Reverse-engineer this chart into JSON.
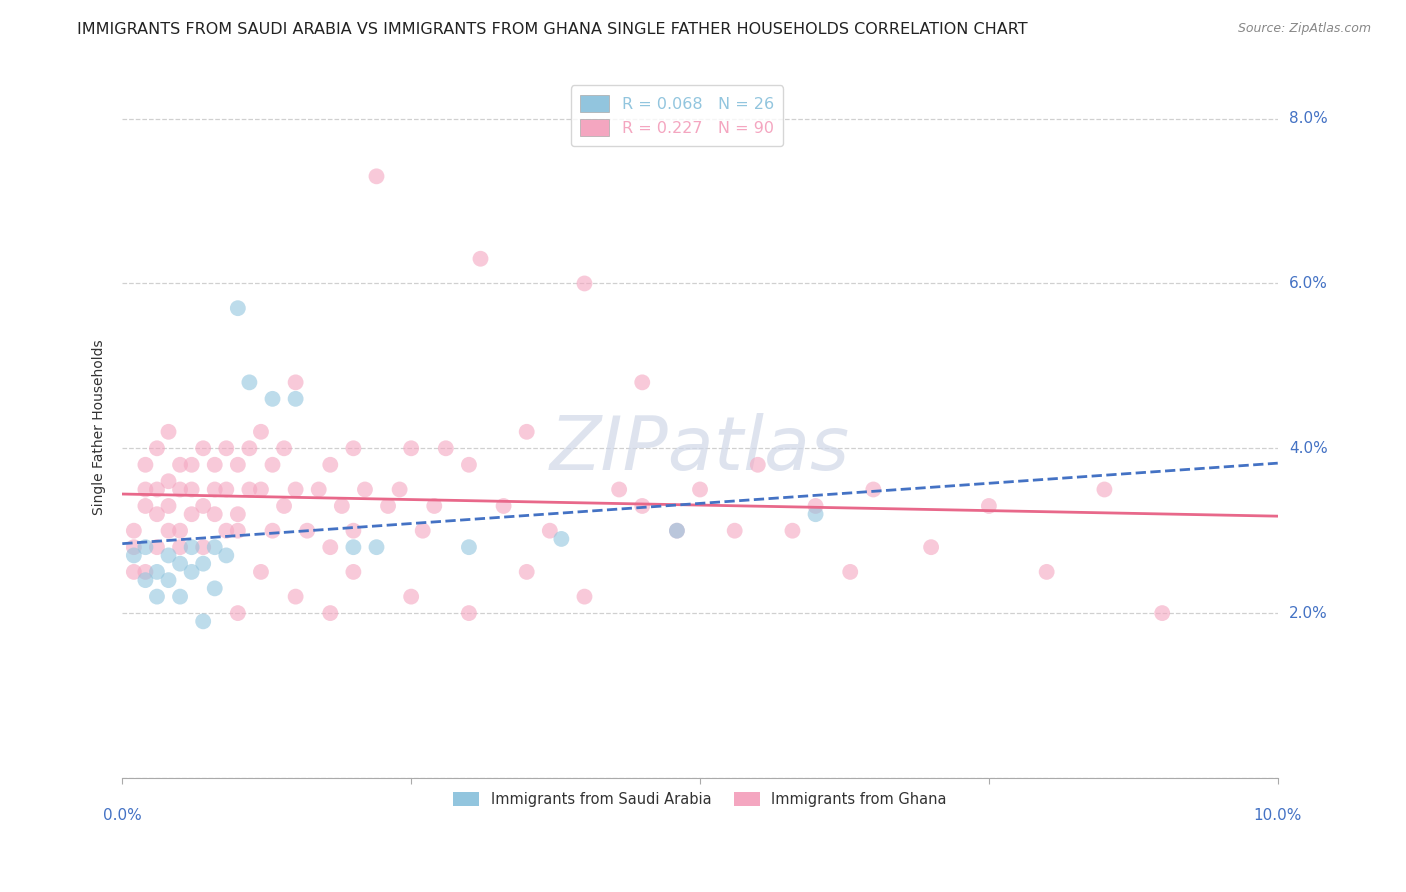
{
  "title": "IMMIGRANTS FROM SAUDI ARABIA VS IMMIGRANTS FROM GHANA SINGLE FATHER HOUSEHOLDS CORRELATION CHART",
  "source": "Source: ZipAtlas.com",
  "ylabel": "Single Father Households",
  "xlim": [
    0.0,
    0.1
  ],
  "ylim": [
    0.0,
    0.085
  ],
  "yticks": [
    0.0,
    0.02,
    0.04,
    0.06,
    0.08
  ],
  "ytick_labels": [
    "",
    "2.0%",
    "4.0%",
    "6.0%",
    "8.0%"
  ],
  "xticks": [
    0.0,
    0.025,
    0.05,
    0.075,
    0.1
  ],
  "legend_top": [
    {
      "label": "R = 0.068   N = 26",
      "color": "#92c5de"
    },
    {
      "label": "R = 0.227   N = 90",
      "color": "#f4a6c0"
    }
  ],
  "saudi_x": [
    0.001,
    0.002,
    0.002,
    0.003,
    0.003,
    0.004,
    0.004,
    0.005,
    0.005,
    0.006,
    0.006,
    0.007,
    0.007,
    0.008,
    0.008,
    0.009,
    0.01,
    0.011,
    0.013,
    0.015,
    0.02,
    0.022,
    0.03,
    0.038,
    0.048,
    0.06
  ],
  "saudi_y": [
    0.027,
    0.024,
    0.028,
    0.025,
    0.022,
    0.027,
    0.024,
    0.026,
    0.022,
    0.028,
    0.025,
    0.026,
    0.019,
    0.028,
    0.023,
    0.027,
    0.057,
    0.048,
    0.046,
    0.046,
    0.028,
    0.028,
    0.028,
    0.029,
    0.03,
    0.032
  ],
  "ghana_x": [
    0.001,
    0.001,
    0.001,
    0.002,
    0.002,
    0.002,
    0.002,
    0.003,
    0.003,
    0.003,
    0.003,
    0.004,
    0.004,
    0.004,
    0.004,
    0.005,
    0.005,
    0.005,
    0.005,
    0.006,
    0.006,
    0.006,
    0.007,
    0.007,
    0.007,
    0.008,
    0.008,
    0.008,
    0.009,
    0.009,
    0.009,
    0.01,
    0.01,
    0.01,
    0.011,
    0.011,
    0.012,
    0.012,
    0.013,
    0.013,
    0.014,
    0.014,
    0.015,
    0.015,
    0.016,
    0.017,
    0.018,
    0.018,
    0.019,
    0.02,
    0.02,
    0.021,
    0.022,
    0.023,
    0.024,
    0.025,
    0.026,
    0.027,
    0.028,
    0.03,
    0.031,
    0.033,
    0.035,
    0.037,
    0.04,
    0.043,
    0.045,
    0.048,
    0.05,
    0.053,
    0.055,
    0.058,
    0.06,
    0.063,
    0.065,
    0.07,
    0.075,
    0.08,
    0.085,
    0.09,
    0.01,
    0.012,
    0.015,
    0.018,
    0.02,
    0.025,
    0.03,
    0.035,
    0.04,
    0.045
  ],
  "ghana_y": [
    0.028,
    0.03,
    0.025,
    0.033,
    0.035,
    0.038,
    0.025,
    0.032,
    0.04,
    0.035,
    0.028,
    0.036,
    0.03,
    0.042,
    0.033,
    0.038,
    0.03,
    0.035,
    0.028,
    0.038,
    0.032,
    0.035,
    0.04,
    0.033,
    0.028,
    0.038,
    0.032,
    0.035,
    0.04,
    0.03,
    0.035,
    0.03,
    0.038,
    0.032,
    0.035,
    0.04,
    0.042,
    0.035,
    0.03,
    0.038,
    0.033,
    0.04,
    0.035,
    0.048,
    0.03,
    0.035,
    0.038,
    0.028,
    0.033,
    0.03,
    0.04,
    0.035,
    0.073,
    0.033,
    0.035,
    0.04,
    0.03,
    0.033,
    0.04,
    0.038,
    0.063,
    0.033,
    0.042,
    0.03,
    0.06,
    0.035,
    0.048,
    0.03,
    0.035,
    0.03,
    0.038,
    0.03,
    0.033,
    0.025,
    0.035,
    0.028,
    0.033,
    0.025,
    0.035,
    0.02,
    0.02,
    0.025,
    0.022,
    0.02,
    0.025,
    0.022,
    0.02,
    0.025,
    0.022,
    0.033
  ],
  "saudi_color": "#92c5de",
  "ghana_color": "#f4a6c0",
  "saudi_line_color": "#4472C4",
  "ghana_line_color": "#e8688a",
  "saudi_line_style": "--",
  "ghana_line_style": "-",
  "watermark_text": "ZIPatlas",
  "watermark_color": "#d0d8e8",
  "background_color": "#ffffff",
  "grid_color": "#d0d0d0",
  "tick_color": "#4472C4",
  "title_color": "#222222",
  "source_color": "#888888",
  "title_fontsize": 11.5,
  "axis_label_fontsize": 10,
  "tick_fontsize": 11,
  "legend_bottom": [
    {
      "label": "Immigrants from Saudi Arabia",
      "color": "#92c5de"
    },
    {
      "label": "Immigrants from Ghana",
      "color": "#f4a6c0"
    }
  ]
}
